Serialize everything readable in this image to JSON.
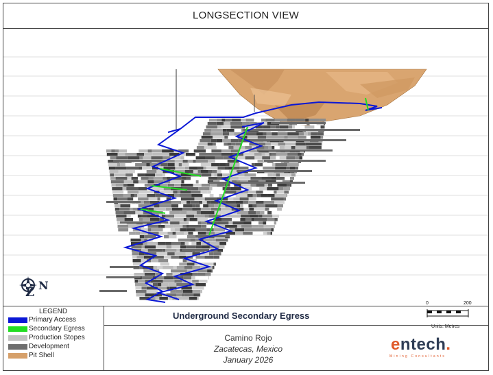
{
  "header": {
    "title": "LONGSECTION VIEW"
  },
  "compass": {
    "up_label": "Z",
    "north_label": "N"
  },
  "scale_bar": {
    "min": "0",
    "max": "200",
    "units": "Units: Metres"
  },
  "legend": {
    "title": "LEGEND",
    "items": [
      {
        "label": "Primary Access",
        "color": "#0a17d6"
      },
      {
        "label": "Secondary Egress",
        "color": "#22dd22"
      },
      {
        "label": "Production Stopes",
        "color": "#c2c2c2"
      },
      {
        "label": "Development",
        "color": "#6e6e6e"
      },
      {
        "label": "Pit Shell",
        "color": "#d6a06a"
      }
    ]
  },
  "info": {
    "subtitle": "Underground Secondary Egress",
    "project": "Camino Rojo",
    "location": "Zacatecas, Mexico",
    "date": "January 2026"
  },
  "logo": {
    "wordmark_e": "e",
    "wordmark_rest": "ntech",
    "wordmark_dot": ".",
    "tagline": "Mining Consultants"
  },
  "colors": {
    "pit_fill": "#d9a570",
    "pit_shadow": "#b98553",
    "stope_dark": "#5a5a5a",
    "stope_light": "#bdbdbd"
  }
}
